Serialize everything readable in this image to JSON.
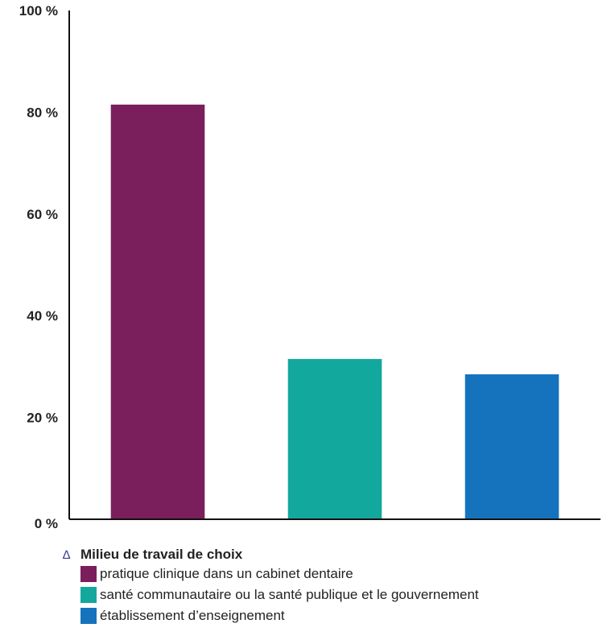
{
  "chart_data": {
    "type": "bar",
    "categories": [
      "pratique clinique dans un cabinet dentaire",
      "santé communautaire ou la santé publique et le gouvernement",
      "établissement d’enseignement"
    ],
    "values": [
      81.5,
      31.5,
      28.5
    ],
    "colors": [
      "#7a1f5c",
      "#13a89e",
      "#1573be"
    ],
    "ylim": [
      0,
      100
    ],
    "yticks": [
      0,
      20,
      40,
      60,
      80,
      100
    ],
    "ytick_labels": [
      "0 %",
      "20 %",
      "40 %",
      "60 %",
      "80 %",
      "100 %"
    ],
    "grid": false,
    "legend_position": "bottom-left",
    "legend_title": "Milieu de travail de choix",
    "legend_marker": "∆"
  }
}
